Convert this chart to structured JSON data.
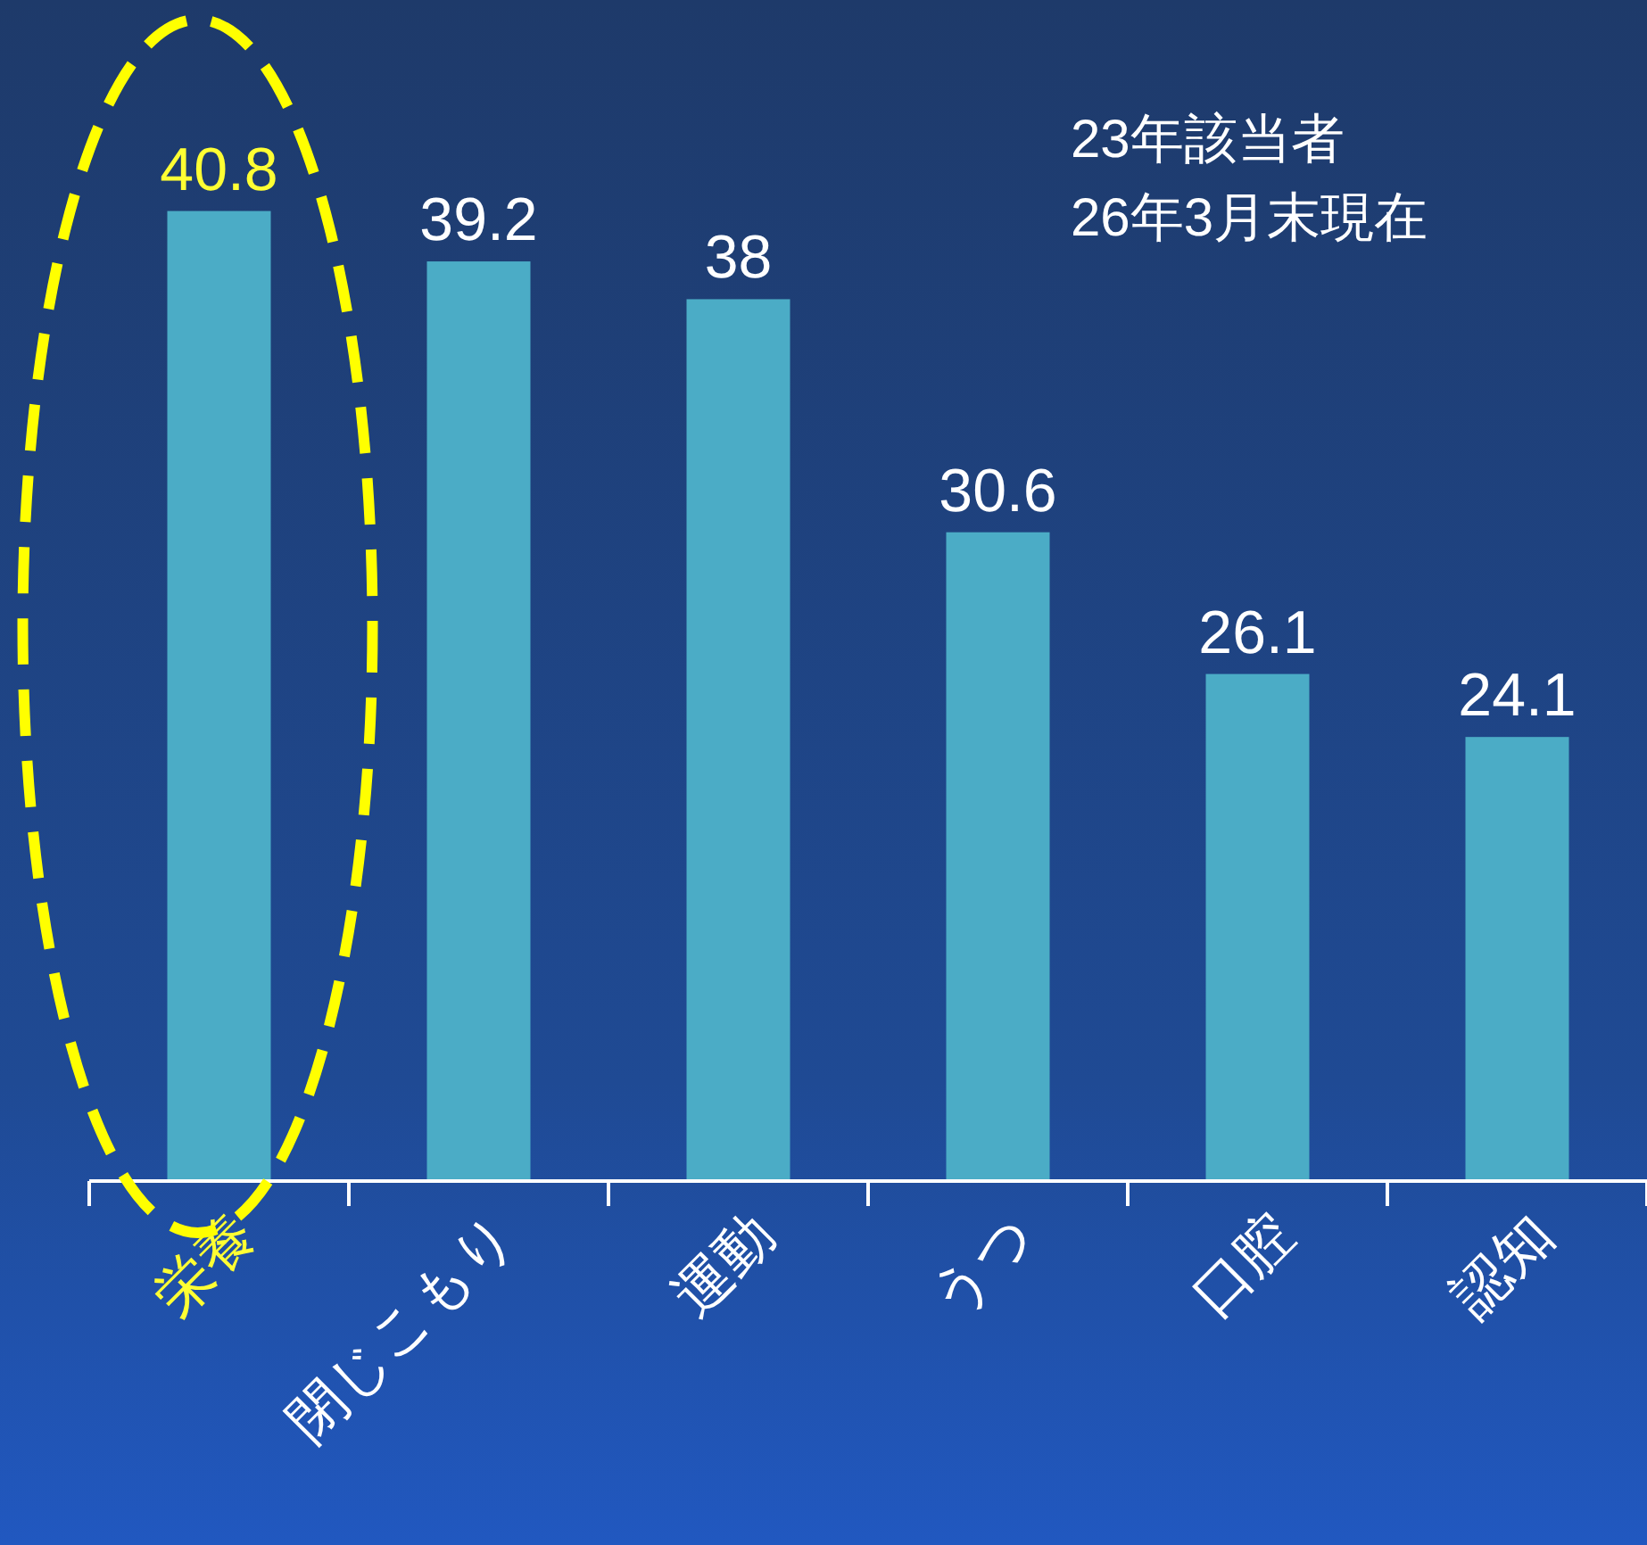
{
  "chart_data": {
    "type": "bar",
    "categories": [
      "栄養",
      "閉じこもり",
      "運動",
      "うつ",
      "口腔",
      "認知"
    ],
    "values": [
      40.8,
      39.2,
      38,
      30.6,
      26.1,
      24.1
    ],
    "color": "#4bacc6",
    "ylim": [
      10,
      47.5
    ],
    "data_labels": true,
    "annotations": [
      "23年該当者",
      "26年3月末現在"
    ]
  }
}
